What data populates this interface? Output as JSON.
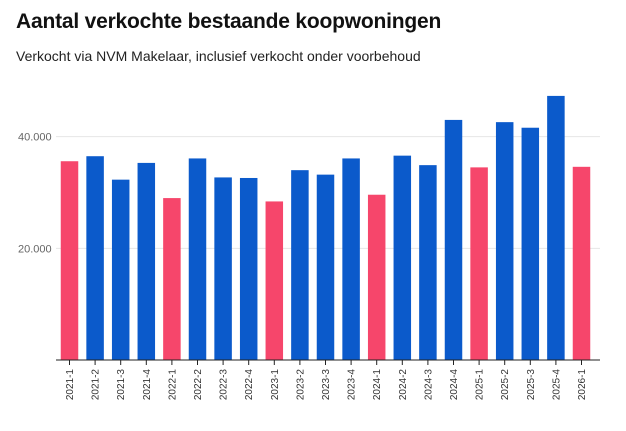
{
  "header": {
    "title": "Aantal verkochte bestaande koopwoningen",
    "subtitle": "Verkocht via NVM Makelaar, inclusief verkocht onder voorbehoud"
  },
  "colors": {
    "regular": "#0b5acb",
    "highlight": "#f6466b",
    "grid": "#e6e6e6",
    "axis": "#222222"
  },
  "chart_data": {
    "type": "bar",
    "title": "Aantal verkochte bestaande koopwoningen",
    "subtitle": "Verkocht via NVM Makelaar, inclusief verkocht onder voorbehoud",
    "xlabel": "",
    "ylabel": "",
    "ylim": [
      0,
      48000
    ],
    "yticks": [
      20000,
      40000
    ],
    "ytick_labels": [
      "20.000",
      "40.000"
    ],
    "grid": true,
    "categories": [
      "2021-1",
      "2021-2",
      "2021-3",
      "2021-4",
      "2022-1",
      "2022-2",
      "2022-3",
      "2022-4",
      "2023-1",
      "2023-2",
      "2023-3",
      "2023-4",
      "2024-1",
      "2024-2",
      "2024-3",
      "2024-4",
      "2025-1",
      "2025-2",
      "2025-3",
      "2025-4",
      "2026-1"
    ],
    "values": [
      35600,
      36500,
      32300,
      35300,
      29000,
      36100,
      32700,
      32600,
      28400,
      34000,
      33200,
      36100,
      29600,
      36600,
      34900,
      43000,
      34500,
      42600,
      41600,
      47300,
      34600
    ],
    "highlighted_quarter": "Q1"
  }
}
